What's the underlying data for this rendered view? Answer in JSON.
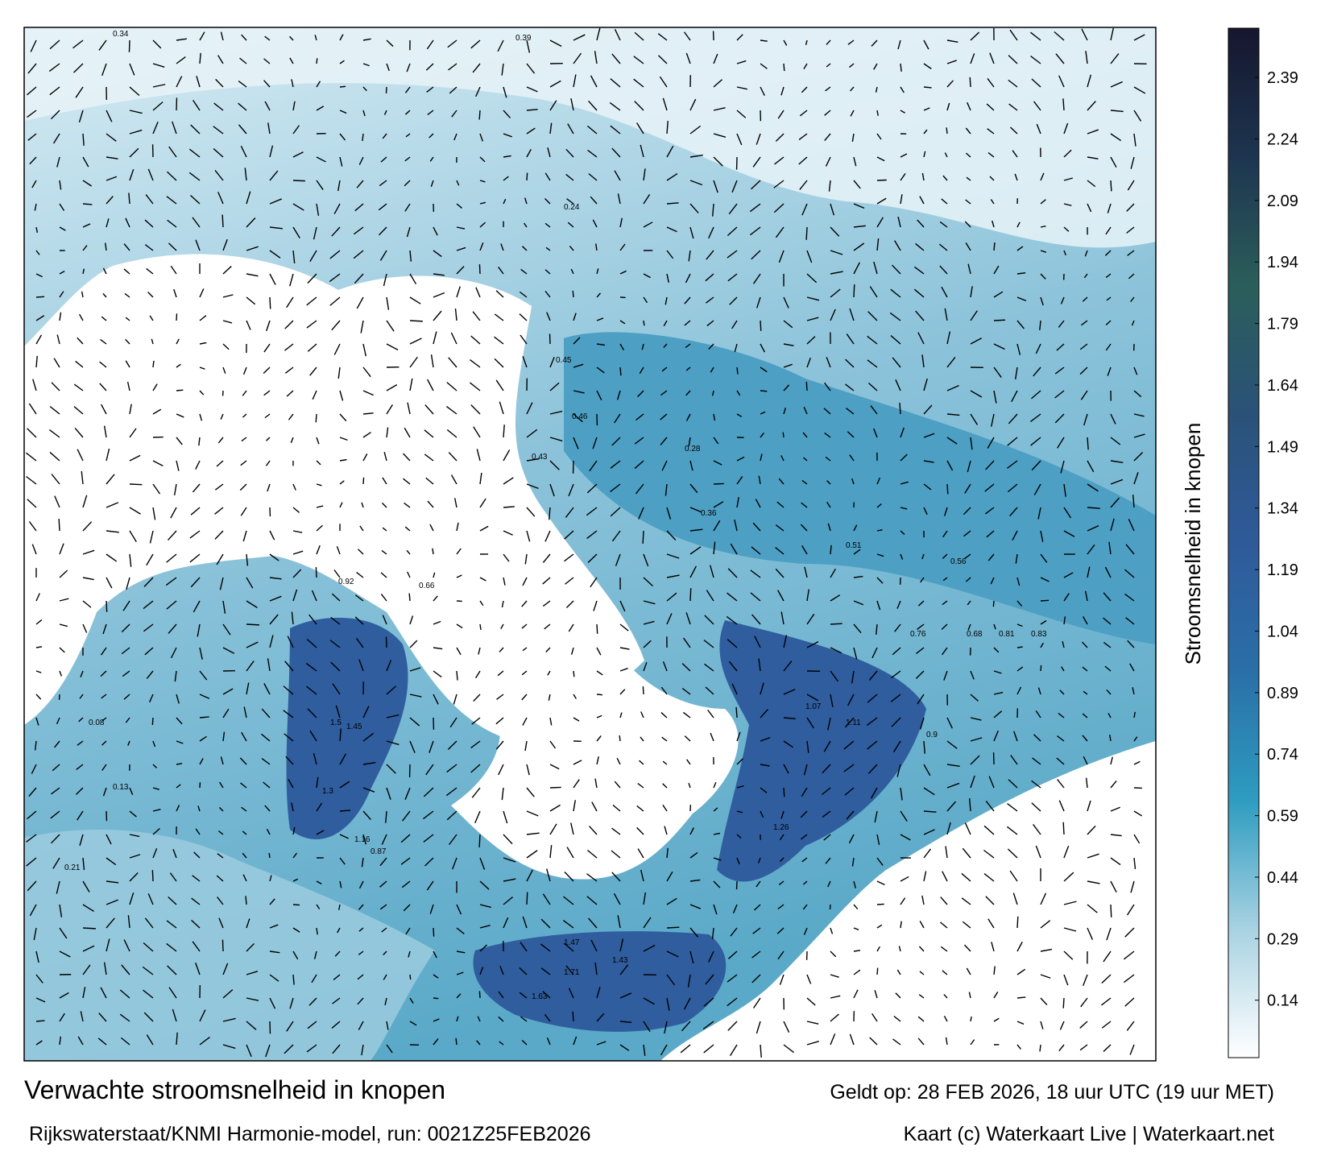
{
  "header": {
    "title": "Verwachte stroomsnelheid in knopen",
    "model": "Rijkswaterstaat/KNMI Harmonie-model, run: 0021Z25FEB2026",
    "valid": "Geldt op: 28 FEB 2026, 18 uur UTC (19 uur MET)",
    "credit": "Kaart (c) Waterkaart Live | Waterkaart.net"
  },
  "colorbar": {
    "label": "Stroomsnelheid in knopen",
    "lim": [
      0,
      2.51
    ],
    "ticks": [
      0.14,
      0.29,
      0.44,
      0.59,
      0.74,
      0.89,
      1.04,
      1.19,
      1.34,
      1.49,
      1.64,
      1.79,
      1.94,
      2.09,
      2.24,
      2.39
    ],
    "colors": [
      "#ffffff",
      "#a8d2e2",
      "#2e9cc0",
      "#2a6fa8",
      "#2f5a9a",
      "#2a5278",
      "#2b5e5a",
      "#1d3550",
      "#16162e"
    ]
  },
  "map_labels": [
    "0.34",
    "0.39",
    "0.24",
    "0.45",
    "0.43",
    "0.46",
    "0.66",
    "0.92",
    "1.5",
    "1.45",
    "1.3",
    "1.16",
    "0.87",
    "1.47",
    "1.71",
    "1.63",
    "1.43",
    "1.26",
    "1.07",
    "1.11",
    "0.9",
    "0.76",
    "0.81",
    "0.83",
    "0.68",
    "0.56",
    "0.51",
    "0.36",
    "0.28",
    "0.13",
    "0.08",
    "0.21"
  ]
}
